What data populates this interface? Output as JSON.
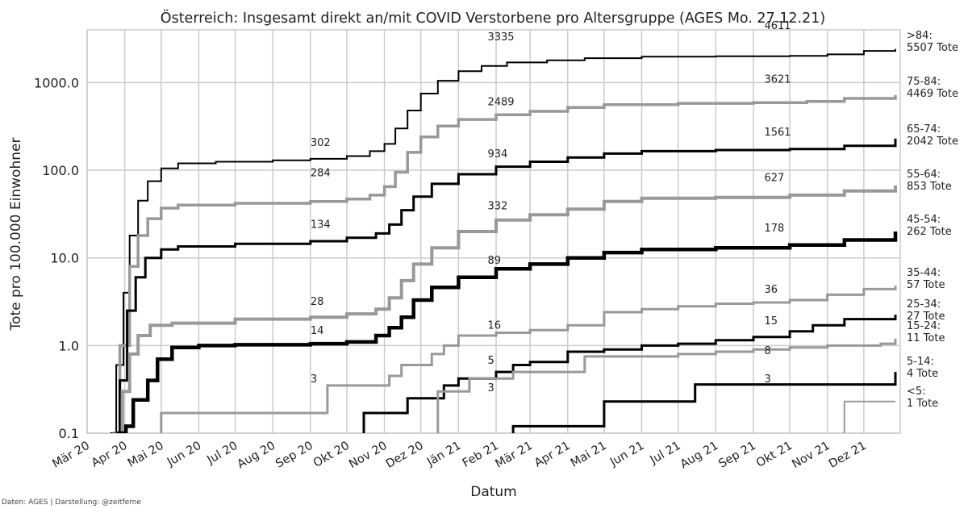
{
  "chart_data": {
    "type": "line",
    "title": "Österreich: Insgesamt direkt an/mit COVID Verstorbene pro Altersgruppe (AGES Mo. 27.12.21)",
    "xlabel": "Datum",
    "ylabel": "Tote pro 100.000 Einwohner",
    "yscale": "log",
    "ylim": [
      0.1,
      4000
    ],
    "xlim": [
      "2020-03-01",
      "2021-12-31"
    ],
    "grid": true,
    "yticks": [
      {
        "value": 0.1,
        "label": "0.1"
      },
      {
        "value": 1,
        "label": "1.0"
      },
      {
        "value": 10,
        "label": "10.0"
      },
      {
        "value": 100,
        "label": "100.0"
      },
      {
        "value": 1000,
        "label": "1000.0"
      }
    ],
    "xticks": [
      {
        "date": "2020-03-01",
        "label": "Mär 20"
      },
      {
        "date": "2020-04-01",
        "label": "Apr 20"
      },
      {
        "date": "2020-05-01",
        "label": "Mai 20"
      },
      {
        "date": "2020-06-01",
        "label": "Jun 20"
      },
      {
        "date": "2020-07-01",
        "label": "Jul 20"
      },
      {
        "date": "2020-08-01",
        "label": "Aug 20"
      },
      {
        "date": "2020-09-01",
        "label": "Sep 20"
      },
      {
        "date": "2020-10-01",
        "label": "Okt 20"
      },
      {
        "date": "2020-11-01",
        "label": "Nov 20"
      },
      {
        "date": "2020-12-01",
        "label": "Dez 20"
      },
      {
        "date": "2021-01-01",
        "label": "Jän 21"
      },
      {
        "date": "2021-02-01",
        "label": "Feb 21"
      },
      {
        "date": "2021-03-01",
        "label": "Mär 21"
      },
      {
        "date": "2021-04-01",
        "label": "Apr 21"
      },
      {
        "date": "2021-05-01",
        "label": "Mai 21"
      },
      {
        "date": "2021-06-01",
        "label": "Jun 21"
      },
      {
        "date": "2021-07-01",
        "label": "Jul 21"
      },
      {
        "date": "2021-08-01",
        "label": "Aug 21"
      },
      {
        "date": "2021-09-01",
        "label": "Sep 21"
      },
      {
        "date": "2021-10-01",
        "label": "Okt 21"
      },
      {
        "date": "2021-11-01",
        "label": "Nov 21"
      },
      {
        "date": "2021-12-01",
        "label": "Dez 21"
      }
    ],
    "series": [
      {
        "label_line1": ">84:",
        "label_line2": "5507 Tote",
        "color": "#000000",
        "width": 2,
        "points": [
          [
            "2020-03-20",
            0.1
          ],
          [
            "2020-03-25",
            0.6
          ],
          [
            "2020-03-31",
            4
          ],
          [
            "2020-04-05",
            18
          ],
          [
            "2020-04-12",
            45
          ],
          [
            "2020-04-20",
            75
          ],
          [
            "2020-05-01",
            105
          ],
          [
            "2020-05-15",
            120
          ],
          [
            "2020-06-15",
            125
          ],
          [
            "2020-08-01",
            130
          ],
          [
            "2020-09-01",
            135
          ],
          [
            "2020-10-01",
            145
          ],
          [
            "2020-10-20",
            165
          ],
          [
            "2020-11-01",
            200
          ],
          [
            "2020-11-10",
            300
          ],
          [
            "2020-11-20",
            480
          ],
          [
            "2020-12-01",
            750
          ],
          [
            "2020-12-15",
            1050
          ],
          [
            "2021-01-01",
            1350
          ],
          [
            "2021-01-20",
            1550
          ],
          [
            "2021-02-10",
            1700
          ],
          [
            "2021-03-15",
            1800
          ],
          [
            "2021-04-15",
            1900
          ],
          [
            "2021-06-01",
            1980
          ],
          [
            "2021-08-01",
            2000
          ],
          [
            "2021-10-01",
            2020
          ],
          [
            "2021-11-01",
            2100
          ],
          [
            "2021-12-01",
            2300
          ],
          [
            "2021-12-27",
            2420
          ]
        ]
      },
      {
        "label_line1": "75-84:",
        "label_line2": "4469 Tote",
        "color": "#999999",
        "width": 3.5,
        "points": [
          [
            "2020-03-22",
            0.1
          ],
          [
            "2020-03-28",
            1
          ],
          [
            "2020-04-05",
            8
          ],
          [
            "2020-04-12",
            18
          ],
          [
            "2020-04-20",
            28
          ],
          [
            "2020-05-01",
            37
          ],
          [
            "2020-05-15",
            40
          ],
          [
            "2020-07-01",
            42
          ],
          [
            "2020-09-01",
            44
          ],
          [
            "2020-10-01",
            47
          ],
          [
            "2020-10-20",
            52
          ],
          [
            "2020-11-01",
            65
          ],
          [
            "2020-11-10",
            95
          ],
          [
            "2020-11-20",
            160
          ],
          [
            "2020-12-01",
            240
          ],
          [
            "2020-12-15",
            320
          ],
          [
            "2021-01-01",
            380
          ],
          [
            "2021-02-01",
            430
          ],
          [
            "2021-03-01",
            470
          ],
          [
            "2021-04-01",
            520
          ],
          [
            "2021-05-01",
            560
          ],
          [
            "2021-07-01",
            580
          ],
          [
            "2021-09-01",
            590
          ],
          [
            "2021-10-15",
            610
          ],
          [
            "2021-11-15",
            660
          ],
          [
            "2021-12-27",
            720
          ]
        ]
      },
      {
        "label_line1": "65-74:",
        "label_line2": "2042 Tote",
        "color": "#000000",
        "width": 3,
        "points": [
          [
            "2020-03-23",
            0.1
          ],
          [
            "2020-03-28",
            0.4
          ],
          [
            "2020-04-03",
            2.5
          ],
          [
            "2020-04-10",
            6
          ],
          [
            "2020-04-18",
            10
          ],
          [
            "2020-05-01",
            12.5
          ],
          [
            "2020-05-15",
            13.5
          ],
          [
            "2020-07-01",
            14.5
          ],
          [
            "2020-09-01",
            15.5
          ],
          [
            "2020-10-01",
            17
          ],
          [
            "2020-10-25",
            19
          ],
          [
            "2020-11-05",
            24
          ],
          [
            "2020-11-15",
            35
          ],
          [
            "2020-11-25",
            50
          ],
          [
            "2020-12-10",
            70
          ],
          [
            "2021-01-01",
            90
          ],
          [
            "2021-02-01",
            110
          ],
          [
            "2021-03-01",
            125
          ],
          [
            "2021-04-01",
            140
          ],
          [
            "2021-05-01",
            155
          ],
          [
            "2021-06-01",
            165
          ],
          [
            "2021-08-01",
            170
          ],
          [
            "2021-10-01",
            175
          ],
          [
            "2021-11-15",
            190
          ],
          [
            "2021-12-27",
            230
          ]
        ]
      },
      {
        "label_line1": "55-64:",
        "label_line2": "853 Tote",
        "color": "#999999",
        "width": 4,
        "points": [
          [
            "2020-03-24",
            0.1
          ],
          [
            "2020-03-30",
            0.3
          ],
          [
            "2020-04-05",
            0.8
          ],
          [
            "2020-04-12",
            1.3
          ],
          [
            "2020-04-22",
            1.7
          ],
          [
            "2020-05-10",
            1.8
          ],
          [
            "2020-07-01",
            2
          ],
          [
            "2020-09-01",
            2.1
          ],
          [
            "2020-10-01",
            2.3
          ],
          [
            "2020-10-25",
            2.6
          ],
          [
            "2020-11-05",
            3.5
          ],
          [
            "2020-11-15",
            5.5
          ],
          [
            "2020-11-25",
            8.5
          ],
          [
            "2020-12-10",
            13
          ],
          [
            "2021-01-01",
            20
          ],
          [
            "2021-02-01",
            27
          ],
          [
            "2021-03-01",
            31
          ],
          [
            "2021-04-01",
            36
          ],
          [
            "2021-05-01",
            44
          ],
          [
            "2021-06-01",
            48
          ],
          [
            "2021-08-01",
            49
          ],
          [
            "2021-10-01",
            52
          ],
          [
            "2021-11-15",
            58
          ],
          [
            "2021-12-27",
            67
          ]
        ]
      },
      {
        "label_line1": "45-54:",
        "label_line2": "262 Tote",
        "color": "#000000",
        "width": 4.5,
        "points": [
          [
            "2020-03-25",
            0.1
          ],
          [
            "2020-04-02",
            0.12
          ],
          [
            "2020-04-08",
            0.24
          ],
          [
            "2020-04-20",
            0.4
          ],
          [
            "2020-04-28",
            0.7
          ],
          [
            "2020-05-10",
            0.95
          ],
          [
            "2020-06-01",
            1
          ],
          [
            "2020-07-01",
            1.02
          ],
          [
            "2020-09-01",
            1.05
          ],
          [
            "2020-10-01",
            1.1
          ],
          [
            "2020-10-25",
            1.3
          ],
          [
            "2020-11-05",
            1.6
          ],
          [
            "2020-11-15",
            2.1
          ],
          [
            "2020-11-25",
            3.3
          ],
          [
            "2020-12-10",
            4.6
          ],
          [
            "2021-01-01",
            6
          ],
          [
            "2021-02-01",
            7.5
          ],
          [
            "2021-03-01",
            8.5
          ],
          [
            "2021-04-01",
            10
          ],
          [
            "2021-05-01",
            11.5
          ],
          [
            "2021-06-01",
            12.5
          ],
          [
            "2021-08-01",
            13
          ],
          [
            "2021-10-01",
            14
          ],
          [
            "2021-11-15",
            16
          ],
          [
            "2021-12-27",
            20
          ]
        ]
      },
      {
        "label_line1": "35-44:",
        "label_line2": "57 Tote",
        "color": "#999999",
        "width": 3,
        "points": [
          [
            "2020-05-01",
            0.1
          ],
          [
            "2020-05-01",
            0.17
          ],
          [
            "2020-09-15",
            0.17
          ],
          [
            "2020-09-15",
            0.35
          ],
          [
            "2020-10-10",
            0.35
          ],
          [
            "2020-11-05",
            0.45
          ],
          [
            "2020-11-15",
            0.6
          ],
          [
            "2020-12-01",
            0.6
          ],
          [
            "2020-12-10",
            0.8
          ],
          [
            "2020-12-20",
            1
          ],
          [
            "2021-01-01",
            1.3
          ],
          [
            "2021-02-01",
            1.4
          ],
          [
            "2021-03-01",
            1.5
          ],
          [
            "2021-04-01",
            1.7
          ],
          [
            "2021-05-01",
            2.4
          ],
          [
            "2021-06-01",
            2.6
          ],
          [
            "2021-07-01",
            2.8
          ],
          [
            "2021-08-01",
            3
          ],
          [
            "2021-09-01",
            3.1
          ],
          [
            "2021-10-01",
            3.3
          ],
          [
            "2021-11-01",
            3.8
          ],
          [
            "2021-12-01",
            4.4
          ],
          [
            "2021-12-27",
            4.8
          ]
        ]
      },
      {
        "label_line1": "25-34:",
        "label_line2": "27 Tote",
        "color": "#000000",
        "width": 3,
        "points": [
          [
            "2020-10-15",
            0.1
          ],
          [
            "2020-10-15",
            0.17
          ],
          [
            "2020-11-20",
            0.17
          ],
          [
            "2020-11-20",
            0.25
          ],
          [
            "2020-12-10",
            0.25
          ],
          [
            "2020-12-20",
            0.35
          ],
          [
            "2021-01-01",
            0.42
          ],
          [
            "2021-02-01",
            0.5
          ],
          [
            "2021-02-15",
            0.6
          ],
          [
            "2021-03-01",
            0.65
          ],
          [
            "2021-04-01",
            0.85
          ],
          [
            "2021-05-01",
            0.9
          ],
          [
            "2021-06-01",
            1
          ],
          [
            "2021-07-01",
            1.05
          ],
          [
            "2021-08-01",
            1.15
          ],
          [
            "2021-09-01",
            1.25
          ],
          [
            "2021-10-01",
            1.45
          ],
          [
            "2021-10-20",
            1.7
          ],
          [
            "2021-11-15",
            2
          ],
          [
            "2021-12-27",
            2.25
          ]
        ]
      },
      {
        "label_line1": "15-24:",
        "label_line2": "11 Tote",
        "color": "#999999",
        "width": 3,
        "points": [
          [
            "2020-12-15",
            0.1
          ],
          [
            "2020-12-15",
            0.3
          ],
          [
            "2021-01-05",
            0.3
          ],
          [
            "2021-01-10",
            0.42
          ],
          [
            "2021-02-01",
            0.42
          ],
          [
            "2021-02-15",
            0.5
          ],
          [
            "2021-03-01",
            0.5
          ],
          [
            "2021-04-15",
            0.55
          ],
          [
            "2021-04-15",
            0.75
          ],
          [
            "2021-06-01",
            0.75
          ],
          [
            "2021-07-01",
            0.8
          ],
          [
            "2021-08-01",
            0.85
          ],
          [
            "2021-09-01",
            0.9
          ],
          [
            "2021-10-01",
            0.95
          ],
          [
            "2021-11-01",
            1
          ],
          [
            "2021-12-15",
            1.05
          ],
          [
            "2021-12-27",
            1.2
          ]
        ]
      },
      {
        "label_line1": "5-14:",
        "label_line2": "4 Tote",
        "color": "#000000",
        "width": 3,
        "points": [
          [
            "2021-02-15",
            0.1
          ],
          [
            "2021-02-15",
            0.12
          ],
          [
            "2021-05-01",
            0.12
          ],
          [
            "2021-05-01",
            0.23
          ],
          [
            "2021-07-15",
            0.23
          ],
          [
            "2021-07-15",
            0.36
          ],
          [
            "2021-12-27",
            0.36
          ],
          [
            "2021-12-27",
            0.5
          ]
        ]
      },
      {
        "label_line1": "<5:",
        "label_line2": "1 Tote",
        "color": "#999999",
        "width": 2,
        "points": [
          [
            "2021-11-15",
            0.1
          ],
          [
            "2021-11-15",
            0.23
          ],
          [
            "2021-12-27",
            0.23
          ]
        ]
      }
    ],
    "annotations": [
      {
        "text": "302",
        "date": "2020-09-01",
        "y": 190
      },
      {
        "text": "284",
        "date": "2020-09-01",
        "y": 85
      },
      {
        "text": "134",
        "date": "2020-09-01",
        "y": 22
      },
      {
        "text": "28",
        "date": "2020-09-01",
        "y": 2.9
      },
      {
        "text": "14",
        "date": "2020-09-01",
        "y": 1.35
      },
      {
        "text": "3",
        "date": "2020-09-01",
        "y": 0.38
      },
      {
        "text": "3335",
        "date": "2021-01-25",
        "y": 3050
      },
      {
        "text": "2489",
        "date": "2021-01-25",
        "y": 550
      },
      {
        "text": "934",
        "date": "2021-01-25",
        "y": 140
      },
      {
        "text": "332",
        "date": "2021-01-25",
        "y": 36
      },
      {
        "text": "89",
        "date": "2021-01-25",
        "y": 8.6
      },
      {
        "text": "16",
        "date": "2021-01-25",
        "y": 1.55
      },
      {
        "text": "5",
        "date": "2021-01-25",
        "y": 0.62
      },
      {
        "text": "3",
        "date": "2021-01-25",
        "y": 0.3
      },
      {
        "text": "4611",
        "date": "2021-09-10",
        "y": 4100
      },
      {
        "text": "3621",
        "date": "2021-09-10",
        "y": 1000
      },
      {
        "text": "1561",
        "date": "2021-09-10",
        "y": 250
      },
      {
        "text": "627",
        "date": "2021-09-10",
        "y": 75
      },
      {
        "text": "178",
        "date": "2021-09-10",
        "y": 20
      },
      {
        "text": "36",
        "date": "2021-09-10",
        "y": 4
      },
      {
        "text": "15",
        "date": "2021-09-10",
        "y": 1.75
      },
      {
        "text": "8",
        "date": "2021-09-10",
        "y": 0.8
      },
      {
        "text": "3",
        "date": "2021-09-10",
        "y": 0.38
      }
    ]
  },
  "credit": "Daten: AGES | Darstellung: @zeitferne"
}
